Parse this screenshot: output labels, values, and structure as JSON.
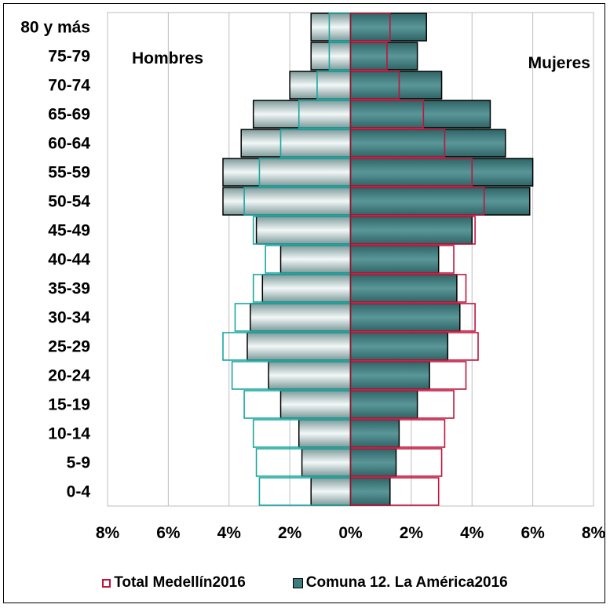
{
  "chart_data": {
    "type": "bar",
    "subtype": "population-pyramid",
    "orientation": "horizontal",
    "categories": [
      "80 y más",
      "75-79",
      "70-74",
      "65-69",
      "60-64",
      "55-59",
      "50-54",
      "45-49",
      "40-44",
      "35-39",
      "30-34",
      "25-29",
      "20-24",
      "15-19",
      "10-14",
      "5-9",
      "0-4"
    ],
    "side_labels": {
      "left": "Hombres",
      "right": "Mujeres"
    },
    "x_ticks": [
      "8%",
      "6%",
      "4%",
      "2%",
      "0%",
      "2%",
      "4%",
      "6%",
      "8%"
    ],
    "xlim": [
      -8,
      8
    ],
    "grid": "vertical",
    "legend_position": "bottom",
    "series": [
      {
        "name": "Total Medellín2016",
        "style": "outline",
        "color_left": "#1aa6a0",
        "color_right": "#c0143c",
        "hombres": [
          0.7,
          0.7,
          1.1,
          1.7,
          2.3,
          3.0,
          3.5,
          3.2,
          2.8,
          3.2,
          3.8,
          4.2,
          3.9,
          3.5,
          3.2,
          3.1,
          3.0
        ],
        "mujeres": [
          1.3,
          1.2,
          1.6,
          2.4,
          3.1,
          4.0,
          4.4,
          4.1,
          3.4,
          3.8,
          4.1,
          4.2,
          3.8,
          3.4,
          3.1,
          3.0,
          2.9
        ]
      },
      {
        "name": "Comuna 12. La América2016",
        "style": "filled",
        "color_left": "#9bb3b3",
        "color_right": "#3e7c7e",
        "hombres": [
          1.3,
          1.3,
          2.0,
          3.2,
          3.6,
          4.2,
          4.2,
          3.1,
          2.3,
          2.9,
          3.3,
          3.4,
          2.7,
          2.3,
          1.7,
          1.6,
          1.3
        ],
        "mujeres": [
          2.5,
          2.2,
          3.0,
          4.6,
          5.1,
          6.0,
          5.9,
          4.0,
          2.9,
          3.5,
          3.6,
          3.2,
          2.6,
          2.2,
          1.6,
          1.5,
          1.3
        ]
      }
    ]
  },
  "legend": {
    "items": [
      {
        "label": "Total Medellín2016"
      },
      {
        "label": "Comuna 12. La América2016"
      }
    ]
  }
}
